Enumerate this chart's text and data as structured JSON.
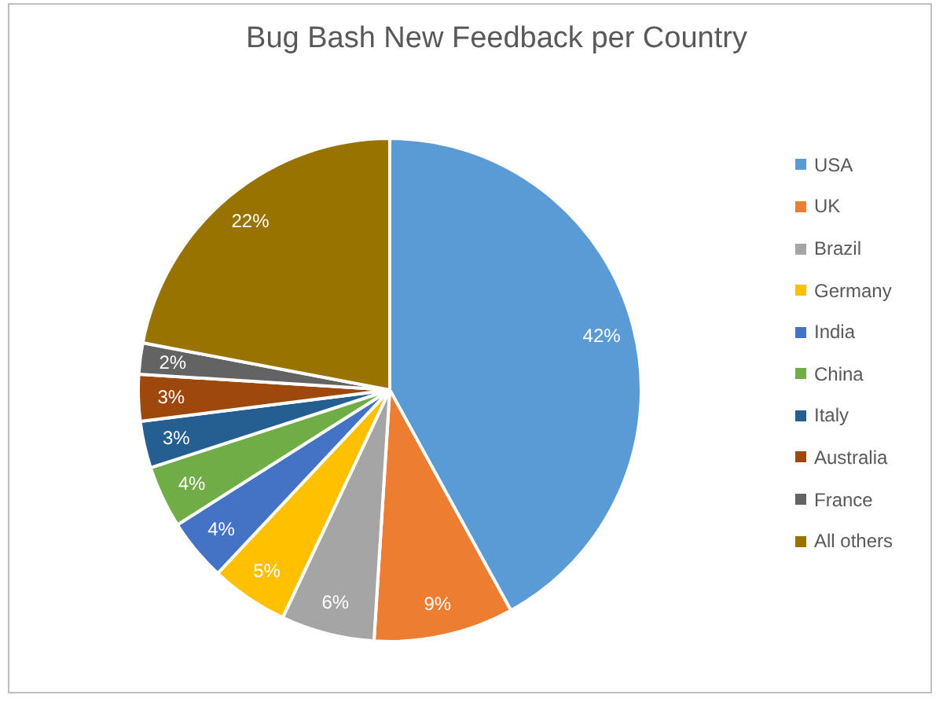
{
  "chart_data": {
    "type": "pie",
    "title": "Bug Bash New Feedback per Country",
    "categories": [
      "USA",
      "UK",
      "Brazil",
      "Germany",
      "India",
      "China",
      "Italy",
      "Australia",
      "France",
      "All others"
    ],
    "values": [
      42,
      9,
      6,
      5,
      4,
      4,
      3,
      3,
      2,
      22
    ],
    "colors": [
      "#5b9bd5",
      "#ed7d31",
      "#a5a5a5",
      "#ffc000",
      "#4472c4",
      "#70ad47",
      "#255e91",
      "#9e480e",
      "#636363",
      "#997300"
    ],
    "value_labels": [
      "42%",
      "9%",
      "6%",
      "5%",
      "4%",
      "4%",
      "3%",
      "3%",
      "2%",
      "22%"
    ],
    "legend": "right"
  }
}
